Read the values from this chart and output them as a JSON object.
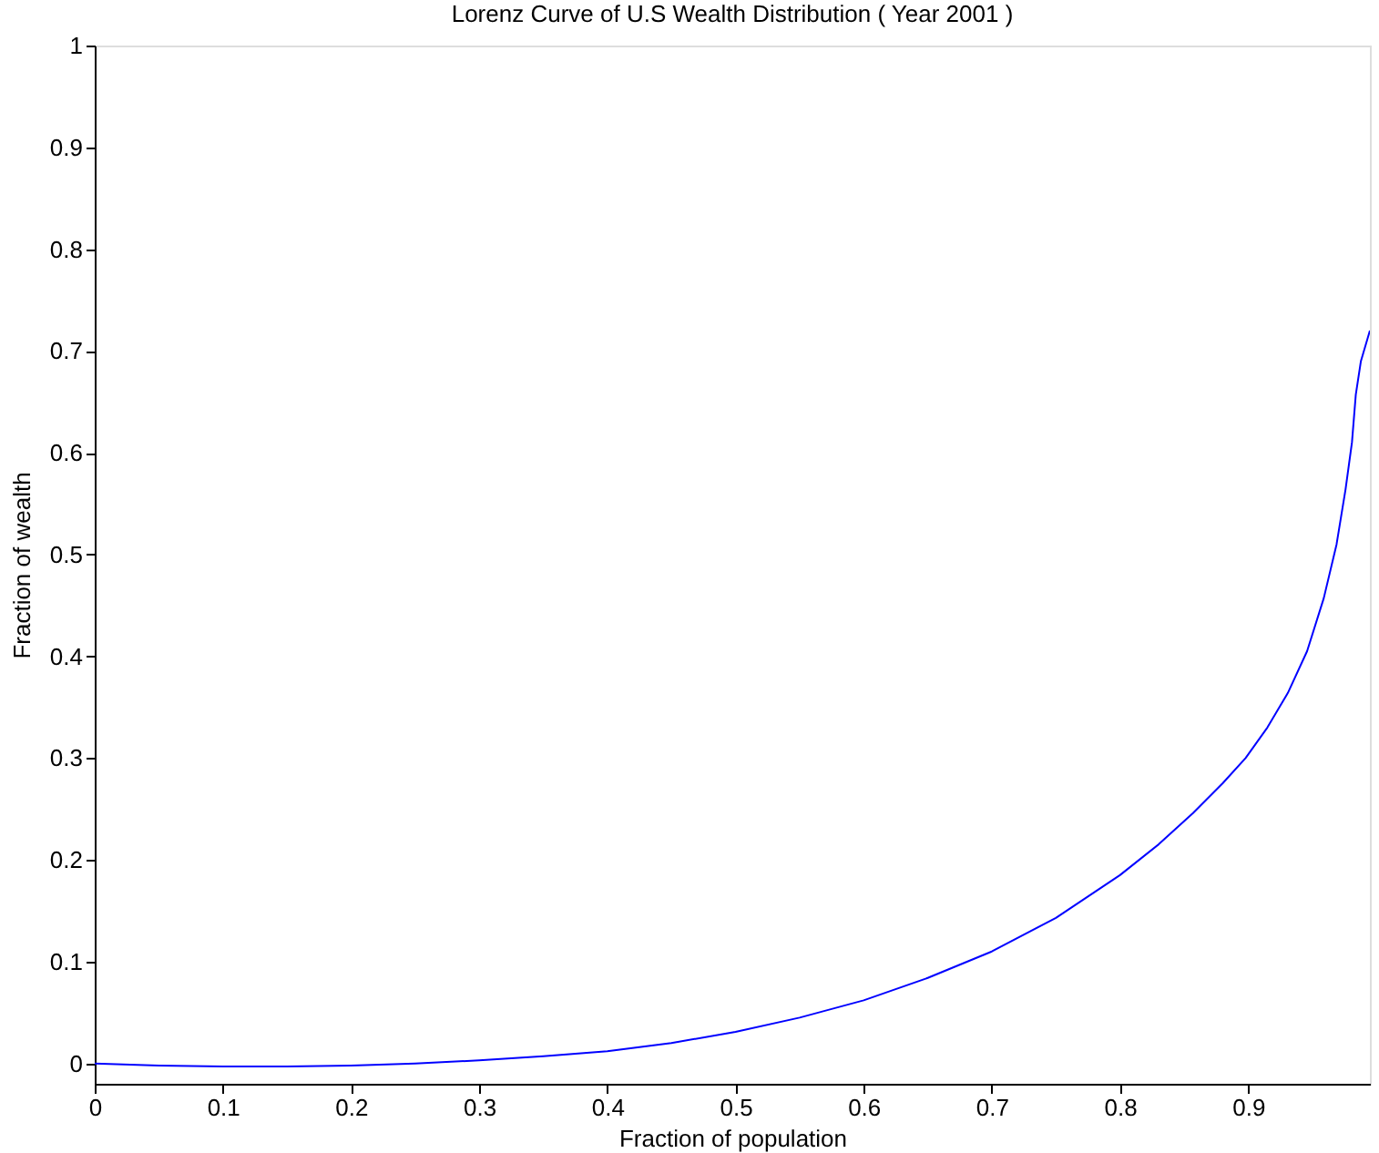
{
  "chart_data": {
    "type": "line",
    "title": "Lorenz Curve of U.S Wealth Distribution ( Year 2001 )",
    "xlabel": "Fraction of population",
    "ylabel": "Fraction of wealth",
    "x": [
      0,
      0.05,
      0.1,
      0.15,
      0.2,
      0.25,
      0.3,
      0.35,
      0.4,
      0.45,
      0.5,
      0.55,
      0.6,
      0.65,
      0.7,
      0.75,
      0.8,
      0.83,
      0.857,
      0.88,
      0.898,
      0.915,
      0.931,
      0.946,
      0.959,
      0.969,
      0.976,
      0.981,
      0.984,
      0.988,
      0.995
    ],
    "series": [
      {
        "color": "#0000ff",
        "values": [
          0,
          -0.002,
          -0.003,
          -0.003,
          -0.002,
          0,
          0.003,
          0.007,
          0.012,
          0.02,
          0.031,
          0.045,
          0.062,
          0.084,
          0.11,
          0.143,
          0.185,
          0.215,
          0.246,
          0.275,
          0.3,
          0.33,
          0.364,
          0.405,
          0.457,
          0.51,
          0.564,
          0.61,
          0.657,
          0.69,
          0.72
        ]
      }
    ],
    "xlim": [
      0,
      0.995
    ],
    "ylim": [
      -0.02,
      1
    ],
    "xticks": [
      0,
      0.1,
      0.2,
      0.3,
      0.4,
      0.5,
      0.6,
      0.7,
      0.8,
      0.9
    ],
    "yticks": [
      0,
      0.1,
      0.2,
      0.3,
      0.4,
      0.5,
      0.6,
      0.7,
      0.8,
      0.9,
      1
    ],
    "grid": false,
    "legend": false,
    "marker": "none",
    "line_style": "solid"
  }
}
